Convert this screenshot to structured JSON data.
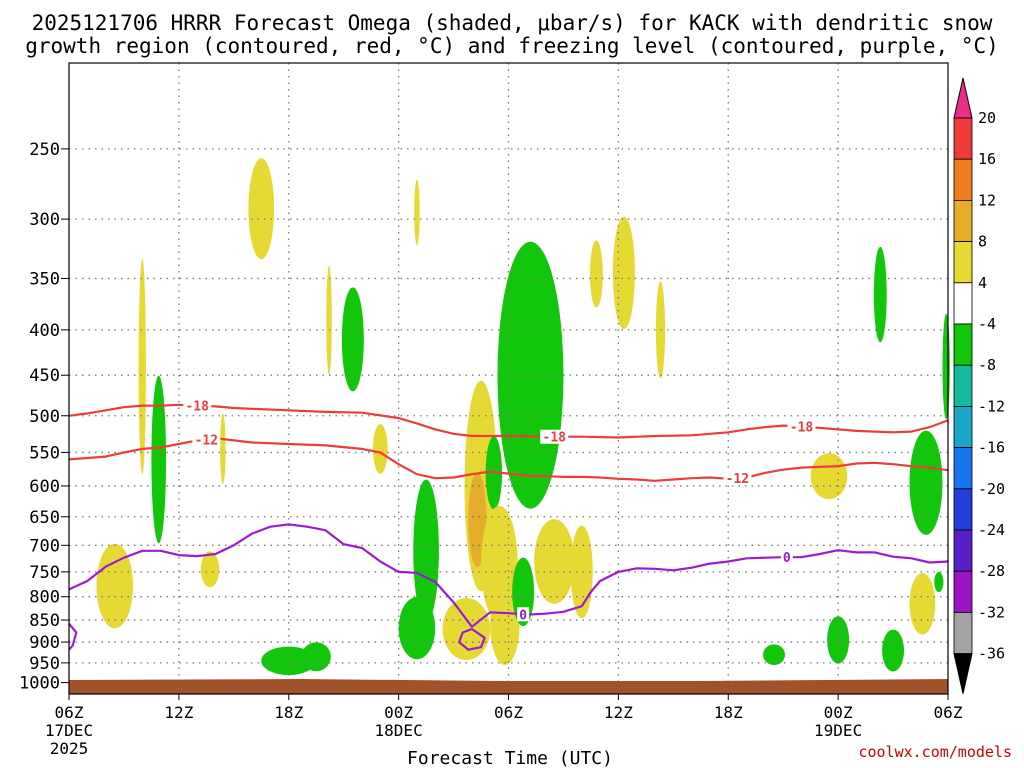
{
  "chart_data": {
    "type": "contour",
    "title_line1": "2025121706 HRRR Forecast Omega (shaded, μbar/s) for KACK with dendritic snow",
    "title_line2": "growth region (contoured, red, °C) and freezing level (contoured, purple, °C)",
    "xlabel": "Forecast Time (UTC)",
    "credit": "coolwx.com/models",
    "x_ticks": [
      {
        "hour": 0,
        "label": "06Z",
        "sub1": "17DEC",
        "sub2": "2025"
      },
      {
        "hour": 6,
        "label": "12Z",
        "sub1": "",
        "sub2": ""
      },
      {
        "hour": 12,
        "label": "18Z",
        "sub1": "",
        "sub2": ""
      },
      {
        "hour": 18,
        "label": "00Z",
        "sub1": "18DEC",
        "sub2": ""
      },
      {
        "hour": 24,
        "label": "06Z",
        "sub1": "",
        "sub2": ""
      },
      {
        "hour": 30,
        "label": "12Z",
        "sub1": "",
        "sub2": ""
      },
      {
        "hour": 36,
        "label": "18Z",
        "sub1": "",
        "sub2": ""
      },
      {
        "hour": 42,
        "label": "00Z",
        "sub1": "19DEC",
        "sub2": ""
      },
      {
        "hour": 48,
        "label": "06Z",
        "sub1": "",
        "sub2": ""
      }
    ],
    "xlim": [
      0,
      48
    ],
    "y_ticks": [
      250,
      300,
      350,
      400,
      450,
      500,
      550,
      600,
      650,
      700,
      750,
      800,
      850,
      900,
      950,
      1000
    ],
    "ylim": [
      1030,
      200
    ],
    "colorbar": {
      "ticks": [
        "20",
        "16",
        "12",
        "8",
        "4",
        "-4",
        "-8",
        "-12",
        "-16",
        "-20",
        "-24",
        "-28",
        "-32",
        "-36"
      ],
      "colors": [
        "#ee2d8a",
        "#ef3b37",
        "#ef7e1f",
        "#e6ac2b",
        "#e6d933",
        "#ffffff",
        "#12c60b",
        "#15b99a",
        "#1aa5c9",
        "#1776ed",
        "#1f3fd6",
        "#5a1fc6",
        "#9c14c4",
        "#a3a3a3",
        "#000000"
      ]
    },
    "contours": [
      {
        "name": "-18C isotherm",
        "color": "#ee3c3c",
        "label": "-18",
        "label_hours": [
          7.0,
          26.5,
          40.0
        ],
        "points": [
          [
            0,
            500
          ],
          [
            1,
            497
          ],
          [
            2,
            493
          ],
          [
            3,
            489
          ],
          [
            4,
            487
          ],
          [
            5,
            487
          ],
          [
            6,
            486
          ],
          [
            7,
            487
          ],
          [
            8,
            488
          ],
          [
            9,
            490
          ],
          [
            10,
            491
          ],
          [
            12,
            493
          ],
          [
            14,
            495
          ],
          [
            16,
            496
          ],
          [
            18,
            503
          ],
          [
            19,
            510
          ],
          [
            20,
            518
          ],
          [
            21,
            524
          ],
          [
            22,
            527
          ],
          [
            24,
            527
          ],
          [
            26,
            528
          ],
          [
            28,
            528
          ],
          [
            30,
            529
          ],
          [
            32,
            527
          ],
          [
            34,
            526
          ],
          [
            36,
            522
          ],
          [
            37,
            518
          ],
          [
            38,
            515
          ],
          [
            39,
            513
          ],
          [
            40,
            514
          ],
          [
            41,
            516
          ],
          [
            42,
            518
          ],
          [
            43,
            520
          ],
          [
            44,
            521
          ],
          [
            45,
            522
          ],
          [
            46,
            521
          ],
          [
            47,
            515
          ],
          [
            48,
            506
          ]
        ]
      },
      {
        "name": "-12C isotherm",
        "color": "#ee3c3c",
        "label": "-12",
        "label_hours": [
          7.5,
          36.5
        ],
        "points": [
          [
            0,
            560
          ],
          [
            1,
            558
          ],
          [
            2,
            556
          ],
          [
            3,
            550
          ],
          [
            4,
            545
          ],
          [
            5,
            543
          ],
          [
            6,
            538
          ],
          [
            7,
            533
          ],
          [
            8,
            530
          ],
          [
            9,
            533
          ],
          [
            10,
            536
          ],
          [
            12,
            538
          ],
          [
            14,
            540
          ],
          [
            16,
            545
          ],
          [
            17,
            550
          ],
          [
            18,
            567
          ],
          [
            19,
            582
          ],
          [
            20,
            588
          ],
          [
            21,
            587
          ],
          [
            22,
            582
          ],
          [
            23,
            578
          ],
          [
            24,
            581
          ],
          [
            25,
            584
          ],
          [
            26,
            585
          ],
          [
            27,
            586
          ],
          [
            28,
            586
          ],
          [
            29,
            587
          ],
          [
            30,
            589
          ],
          [
            31,
            590
          ],
          [
            32,
            592
          ],
          [
            33,
            590
          ],
          [
            34,
            588
          ],
          [
            35,
            587
          ],
          [
            36,
            589
          ],
          [
            37,
            587
          ],
          [
            38,
            580
          ],
          [
            39,
            575
          ],
          [
            40,
            572
          ],
          [
            41,
            571
          ],
          [
            42,
            570
          ],
          [
            43,
            566
          ],
          [
            44,
            565
          ],
          [
            45,
            567
          ],
          [
            46,
            570
          ],
          [
            47,
            572
          ],
          [
            48,
            576
          ]
        ]
      },
      {
        "name": "0C freezing level",
        "color": "#9b1bd0",
        "label": "0",
        "label_hours": [
          24.8,
          39.2
        ],
        "points": [
          [
            0,
            785
          ],
          [
            1,
            768
          ],
          [
            2,
            740
          ],
          [
            3,
            723
          ],
          [
            4,
            710
          ],
          [
            5,
            710
          ],
          [
            6,
            718
          ],
          [
            7,
            720
          ],
          [
            8,
            716
          ],
          [
            9,
            700
          ],
          [
            10,
            679
          ],
          [
            11,
            667
          ],
          [
            12,
            663
          ],
          [
            13,
            667
          ],
          [
            14,
            673
          ],
          [
            15,
            698
          ],
          [
            16,
            705
          ],
          [
            17,
            730
          ],
          [
            18,
            750
          ],
          [
            19,
            752
          ],
          [
            20,
            770
          ],
          [
            21,
            812
          ],
          [
            22,
            865
          ],
          [
            23,
            833
          ],
          [
            24,
            835
          ],
          [
            25,
            838
          ],
          [
            26,
            836
          ],
          [
            27,
            832
          ],
          [
            28,
            820
          ],
          [
            28.5,
            790
          ],
          [
            29,
            768
          ],
          [
            30,
            750
          ],
          [
            31,
            743
          ],
          [
            32,
            744
          ],
          [
            33,
            747
          ],
          [
            34,
            742
          ],
          [
            35,
            734
          ],
          [
            36,
            730
          ],
          [
            37,
            724
          ],
          [
            38,
            723
          ],
          [
            39,
            722
          ],
          [
            40,
            722
          ],
          [
            41,
            716
          ],
          [
            42,
            709
          ],
          [
            43,
            713
          ],
          [
            44,
            713
          ],
          [
            45,
            721
          ],
          [
            46,
            724
          ],
          [
            47,
            732
          ],
          [
            48,
            730
          ]
        ]
      },
      {
        "name": "0C closed loop",
        "color": "#9b1bd0",
        "label": "",
        "label_hours": [],
        "points": [
          [
            22,
            870
          ],
          [
            22.7,
            890
          ],
          [
            22.5,
            912
          ],
          [
            21.8,
            918
          ],
          [
            21.3,
            900
          ],
          [
            21.5,
            878
          ],
          [
            22,
            870
          ]
        ]
      },
      {
        "name": "0C edge loop",
        "color": "#9b1bd0",
        "label": "",
        "label_hours": [],
        "points": [
          [
            0,
            858
          ],
          [
            0.4,
            878
          ],
          [
            0.2,
            908
          ],
          [
            0,
            918
          ]
        ]
      }
    ],
    "omega_cells": [
      {
        "t": 2.5,
        "p": 778,
        "rt": 1.0,
        "rp": 85,
        "value": 4
      },
      {
        "t": 4.0,
        "p": 440,
        "rt": 0.2,
        "rp": 120,
        "value": 4
      },
      {
        "t": 4.9,
        "p": 560,
        "rt": 0.4,
        "rp": 120,
        "value": -4
      },
      {
        "t": 10.5,
        "p": 292,
        "rt": 0.7,
        "rp": 38,
        "value": 4
      },
      {
        "t": 8.4,
        "p": 545,
        "rt": 0.15,
        "rp": 50,
        "value": 4
      },
      {
        "t": 7.7,
        "p": 745,
        "rt": 0.5,
        "rp": 35,
        "value": 4
      },
      {
        "t": 12.0,
        "p": 945,
        "rt": 1.5,
        "rp": 35,
        "value": -4
      },
      {
        "t": 13.5,
        "p": 935,
        "rt": 0.8,
        "rp": 35,
        "value": -4
      },
      {
        "t": 14.2,
        "p": 390,
        "rt": 0.15,
        "rp": 55,
        "value": 4
      },
      {
        "t": 15.5,
        "p": 410,
        "rt": 0.6,
        "rp": 55,
        "value": -4
      },
      {
        "t": 17.0,
        "p": 545,
        "rt": 0.4,
        "rp": 35,
        "value": 4
      },
      {
        "t": 19.0,
        "p": 295,
        "rt": 0.15,
        "rp": 25,
        "value": 4
      },
      {
        "t": 19.5,
        "p": 710,
        "rt": 0.7,
        "rp": 130,
        "value": -4
      },
      {
        "t": 19.0,
        "p": 868,
        "rt": 1.0,
        "rp": 70,
        "value": -4
      },
      {
        "t": 21.7,
        "p": 870,
        "rt": 1.3,
        "rp": 70,
        "value": 4
      },
      {
        "t": 22.5,
        "p": 600,
        "rt": 0.9,
        "rp": 160,
        "value": 4
      },
      {
        "t": 23.2,
        "p": 580,
        "rt": 0.45,
        "rp": 55,
        "value": -4
      },
      {
        "t": 22.3,
        "p": 655,
        "rt": 0.5,
        "rp": 80,
        "value": 8
      },
      {
        "t": 23.5,
        "p": 735,
        "rt": 1.0,
        "rp": 110,
        "value": 4
      },
      {
        "t": 23.8,
        "p": 860,
        "rt": 0.8,
        "rp": 90,
        "value": 4
      },
      {
        "t": 25.2,
        "p": 450,
        "rt": 1.8,
        "rp": 150,
        "value": -4
      },
      {
        "t": 24.8,
        "p": 790,
        "rt": 0.6,
        "rp": 70,
        "value": -4
      },
      {
        "t": 26.5,
        "p": 730,
        "rt": 1.1,
        "rp": 80,
        "value": 4
      },
      {
        "t": 28.0,
        "p": 750,
        "rt": 0.6,
        "rp": 90,
        "value": 4
      },
      {
        "t": 28.8,
        "p": 346,
        "rt": 0.35,
        "rp": 30,
        "value": 4
      },
      {
        "t": 30.3,
        "p": 345,
        "rt": 0.6,
        "rp": 50,
        "value": 4
      },
      {
        "t": 32.3,
        "p": 400,
        "rt": 0.25,
        "rp": 50,
        "value": 4
      },
      {
        "t": 38.5,
        "p": 930,
        "rt": 0.6,
        "rp": 25,
        "value": -4
      },
      {
        "t": 41.5,
        "p": 585,
        "rt": 1.0,
        "rp": 35,
        "value": 4
      },
      {
        "t": 42.0,
        "p": 895,
        "rt": 0.6,
        "rp": 55,
        "value": -4
      },
      {
        "t": 44.3,
        "p": 365,
        "rt": 0.35,
        "rp": 45,
        "value": -4
      },
      {
        "t": 45.0,
        "p": 920,
        "rt": 0.6,
        "rp": 50,
        "value": -4
      },
      {
        "t": 46.8,
        "p": 595,
        "rt": 0.9,
        "rp": 80,
        "value": -4
      },
      {
        "t": 46.6,
        "p": 815,
        "rt": 0.7,
        "rp": 65,
        "value": 4
      },
      {
        "t": 47.5,
        "p": 770,
        "rt": 0.25,
        "rp": 20,
        "value": -4
      },
      {
        "t": 47.9,
        "p": 440,
        "rt": 0.2,
        "rp": 60,
        "value": -4
      }
    ]
  }
}
